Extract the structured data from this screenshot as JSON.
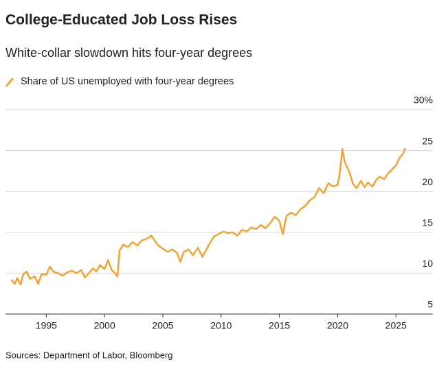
{
  "chart_data": {
    "type": "line",
    "title": "College-Educated Job Loss Rises",
    "subtitle": "White-collar slowdown hits four-year degrees",
    "source": "Sources: Department of Labor, Bloomberg",
    "x": [
      1992.0,
      1992.3,
      1992.5,
      1992.8,
      1993.0,
      1993.3,
      1993.6,
      1994.0,
      1994.3,
      1994.6,
      1995.0,
      1995.3,
      1995.6,
      1996.0,
      1996.4,
      1996.8,
      1997.2,
      1997.6,
      1998.0,
      1998.3,
      1998.6,
      1999.0,
      1999.3,
      1999.6,
      2000.0,
      2000.3,
      2000.6,
      2000.9,
      2001.1,
      2001.3,
      2001.6,
      2002.0,
      2002.4,
      2002.8,
      2003.2,
      2003.6,
      2004.0,
      2004.3,
      2004.6,
      2005.0,
      2005.4,
      2005.8,
      2006.2,
      2006.5,
      2006.8,
      2007.2,
      2007.6,
      2008.0,
      2008.4,
      2008.7,
      2009.0,
      2009.4,
      2009.8,
      2010.2,
      2010.6,
      2011.0,
      2011.4,
      2011.8,
      2012.2,
      2012.6,
      2013.0,
      2013.4,
      2013.8,
      2014.2,
      2014.6,
      2015.0,
      2015.3,
      2015.6,
      2016.0,
      2016.4,
      2016.8,
      2017.2,
      2017.6,
      2018.0,
      2018.4,
      2018.8,
      2019.2,
      2019.6,
      2020.0,
      2020.2,
      2020.4,
      2020.6,
      2020.8,
      2021.0,
      2021.3,
      2021.6,
      2022.0,
      2022.3,
      2022.6,
      2023.0,
      2023.3,
      2023.6,
      2024.0,
      2024.3,
      2024.6,
      2025.0,
      2025.3,
      2025.6,
      2025.8
    ],
    "series": [
      {
        "name": "Share of US unemployed with four-year degrees",
        "color": "#f5a234",
        "values": [
          9.2,
          8.7,
          9.4,
          8.6,
          9.8,
          10.2,
          9.3,
          9.6,
          8.7,
          9.9,
          9.8,
          10.8,
          10.2,
          10.0,
          9.7,
          10.1,
          10.3,
          10.0,
          10.4,
          9.5,
          9.9,
          10.6,
          10.2,
          11.0,
          10.5,
          11.6,
          10.4,
          10.0,
          9.6,
          12.8,
          13.5,
          13.2,
          13.8,
          13.4,
          14.0,
          14.2,
          14.6,
          14.0,
          13.4,
          13.0,
          12.6,
          12.9,
          12.5,
          11.4,
          12.6,
          12.9,
          12.2,
          13.1,
          12.0,
          12.8,
          13.6,
          14.5,
          14.8,
          15.1,
          14.9,
          15.0,
          14.6,
          15.3,
          15.1,
          15.6,
          15.4,
          15.9,
          15.5,
          16.1,
          16.9,
          16.4,
          14.8,
          17.0,
          17.4,
          17.1,
          17.8,
          18.2,
          18.9,
          19.3,
          20.4,
          19.8,
          21.0,
          20.6,
          20.8,
          22.4,
          25.2,
          23.6,
          23.0,
          22.4,
          21.0,
          20.4,
          21.3,
          20.5,
          21.1,
          20.6,
          21.4,
          21.8,
          21.5,
          22.2,
          22.6,
          23.2,
          24.1,
          24.6,
          25.3
        ]
      }
    ],
    "xlim": [
      1991.5,
      2026.4
    ],
    "xticks": [
      1995,
      2000,
      2005,
      2010,
      2015,
      2020,
      2025
    ],
    "ylim": [
      5,
      30
    ],
    "yticks": [
      5,
      10,
      15,
      20,
      25,
      {
        "value": 30,
        "label": "30%"
      }
    ],
    "grid": true
  }
}
